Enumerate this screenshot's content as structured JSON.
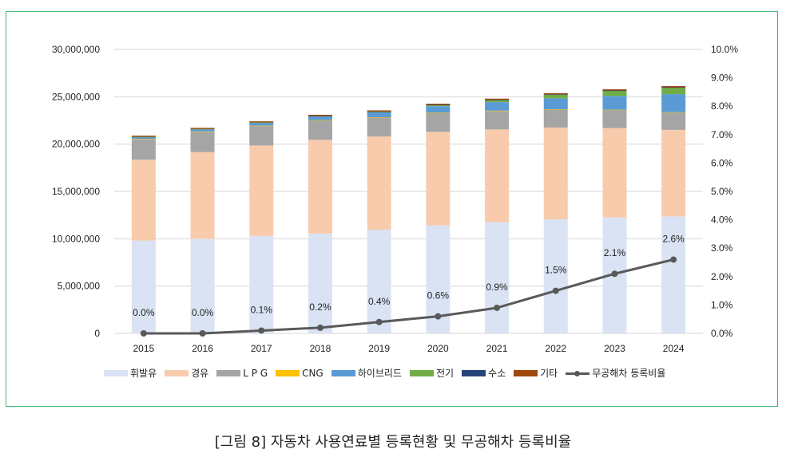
{
  "caption": "[그림 8] 자동차 사용연료별 등록현황 및 무공해차 등록비율",
  "chart_data": {
    "type": "bar",
    "subtype": "stacked-bar-with-line",
    "title": "",
    "categories": [
      "2015",
      "2016",
      "2017",
      "2018",
      "2019",
      "2020",
      "2021",
      "2022",
      "2023",
      "2024"
    ],
    "series": [
      {
        "name": "휘발유",
        "axis": "left",
        "color": "#dae3f3",
        "values": [
          9800000,
          10000000,
          10300000,
          10550000,
          10950000,
          11400000,
          11750000,
          12050000,
          12250000,
          12350000
        ]
      },
      {
        "name": "경유",
        "axis": "left",
        "color": "#f8cbad",
        "values": [
          8550000,
          9150000,
          9550000,
          9900000,
          9850000,
          9900000,
          9800000,
          9700000,
          9450000,
          9150000
        ]
      },
      {
        "name": "L P G",
        "axis": "left",
        "color": "#a5a5a5",
        "values": [
          2150000,
          2150000,
          2050000,
          2050000,
          2000000,
          2000000,
          1950000,
          1900000,
          1900000,
          1850000
        ]
      },
      {
        "name": "CNG",
        "axis": "left",
        "color": "#ffc000",
        "values": [
          40000,
          40000,
          40000,
          40000,
          35000,
          35000,
          30000,
          30000,
          30000,
          25000
        ]
      },
      {
        "name": "하이브리드",
        "axis": "left",
        "color": "#5b9bd5",
        "values": [
          230000,
          250000,
          320000,
          380000,
          510000,
          670000,
          900000,
          1150000,
          1450000,
          1900000
        ]
      },
      {
        "name": "전기",
        "axis": "left",
        "color": "#70ad47",
        "values": [
          6000,
          11000,
          25000,
          56000,
          90000,
          134000,
          231000,
          390000,
          544000,
          680000
        ]
      },
      {
        "name": "수소",
        "axis": "left",
        "color": "#264478",
        "values": [
          0,
          0,
          0,
          1000,
          5000,
          11000,
          19000,
          30000,
          34000,
          38000
        ]
      },
      {
        "name": "기타",
        "axis": "left",
        "color": "#9e480e",
        "values": [
          120000,
          120000,
          120000,
          120000,
          120000,
          120000,
          120000,
          130000,
          130000,
          140000
        ]
      },
      {
        "name": "무공해차 등록비율",
        "axis": "right",
        "type": "line",
        "color": "#595959",
        "values": [
          0.0,
          0.0,
          0.1,
          0.2,
          0.4,
          0.6,
          0.9,
          1.5,
          2.1,
          2.6
        ],
        "labels": [
          "0.0%",
          "0.0%",
          "0.1%",
          "0.2%",
          "0.4%",
          "0.6%",
          "0.9%",
          "1.5%",
          "2.1%",
          "2.6%"
        ]
      }
    ],
    "y_left": {
      "min": 0,
      "max": 30000000,
      "step": 5000000,
      "tick_labels": [
        "0",
        "5,000,000",
        "10,000,000",
        "15,000,000",
        "20,000,000",
        "25,000,000",
        "30,000,000"
      ]
    },
    "y_right": {
      "min": 0,
      "max": 10,
      "step": 1,
      "unit": "%",
      "tick_labels": [
        "0.0%",
        "1.0%",
        "2.0%",
        "3.0%",
        "4.0%",
        "5.0%",
        "6.0%",
        "7.0%",
        "8.0%",
        "9.0%",
        "10.0%"
      ]
    },
    "xlabel": "",
    "ylabel": "",
    "grid": true,
    "legend": "bottom"
  }
}
